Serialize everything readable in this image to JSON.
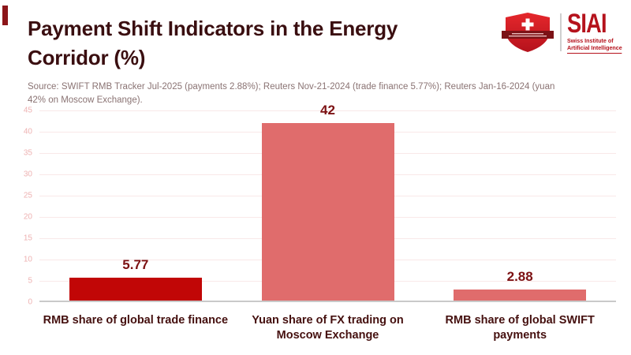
{
  "header": {
    "title": "Payment Shift Indicators in the Energy Corridor (%)",
    "title_lines": [
      "Payment Shift Indicators in the Energy",
      "Corridor (%)"
    ],
    "logo": {
      "acronym": "SIAI",
      "subtitle_line1": "Swiss Institute of",
      "subtitle_line2": "Artificial Intelligence",
      "banner_text": "SWISS INSTITUTE"
    }
  },
  "source_note": {
    "full": "Source: SWIFT RMB Tracker Jul-2025 (payments 2.88%); Reuters Nov-21-2024 (trade finance 5.77%); Reuters Jan-16-2024 (yuan 42% on Moscow Exchange).",
    "lines": [
      "Source: SWIFT RMB Tracker Jul-2025 (payments 2.88%); Reuters Nov-21-2024 (trade finance 5.77%); Reuters Jan-16-2024 (yuan",
      "42% on Moscow Exchange)."
    ]
  },
  "chart_data": {
    "type": "bar",
    "title": "Payment Shift Indicators in the Energy Corridor (%)",
    "categories": [
      "RMB share of global trade finance",
      "Yuan share of FX trading on Moscow Exchange",
      "RMB share of global SWIFT payments"
    ],
    "category_label_lines": [
      [
        "RMB share of global trade finance"
      ],
      [
        "Yuan share of FX trading on",
        "Moscow Exchange"
      ],
      [
        "RMB share of global SWIFT",
        "payments"
      ]
    ],
    "values": [
      5.77,
      42,
      2.88
    ],
    "value_labels": [
      "5.77",
      "42",
      "2.88"
    ],
    "bar_colors": [
      "#c10606",
      "#e06c6c",
      "#e06c6c"
    ],
    "xlabel": "",
    "ylabel": "",
    "ylim": [
      0,
      45
    ],
    "ytick_step": 5,
    "yticks": [
      0,
      5,
      10,
      15,
      20,
      25,
      30,
      35,
      40,
      45
    ],
    "grid": true,
    "legend": false
  },
  "colors": {
    "background": "#ffffff",
    "title_text": "#3a0e10",
    "source_text": "#8a7373",
    "value_label": "#7c1113",
    "category_label": "#45100f",
    "tick_label": "#eeb2b2",
    "gridline": "#f9e8e8",
    "baseline": "#c9c9c9",
    "bar_dark_red": "#c10606",
    "bar_salmon": "#e06c6c",
    "logo_red": "#b5121c",
    "shield_red": "#dd2026",
    "banner_dark_red": "#7c1216",
    "corner_accent": "#8c1519"
  }
}
